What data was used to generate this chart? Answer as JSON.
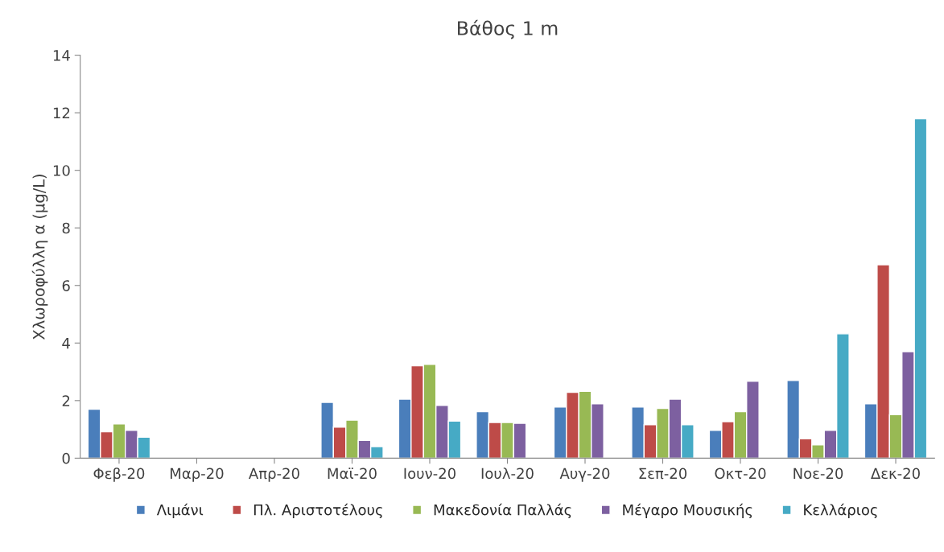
{
  "chart_data": {
    "type": "bar",
    "title": "Βάθος 1 m",
    "ylabel": "Χλωροφύλλη α (μg/L)",
    "categories": [
      "Φεβ-20",
      "Μαρ-20",
      "Απρ-20",
      "Μαϊ-20",
      "Ιουν-20",
      "Ιουλ-20",
      "Αυγ-20",
      "Σεπ-20",
      "Οκτ-20",
      "Νοε-20",
      "Δεκ-20"
    ],
    "series": [
      {
        "name": "Λιμάνι",
        "color": "#4a7ebb",
        "values": [
          1.7,
          null,
          null,
          1.94,
          2.05,
          1.62,
          1.78,
          1.78,
          0.97,
          2.7,
          1.89
        ]
      },
      {
        "name": "Πλ. Αριστοτέλους",
        "color": "#be4b48",
        "values": [
          0.92,
          null,
          null,
          1.08,
          3.21,
          1.24,
          2.29,
          1.16,
          1.27,
          0.67,
          6.72
        ]
      },
      {
        "name": "Μακεδονία Παλλάς",
        "color": "#98b954",
        "values": [
          1.19,
          null,
          null,
          1.32,
          3.26,
          1.24,
          2.32,
          1.73,
          1.62,
          0.46,
          1.51
        ]
      },
      {
        "name": "Μέγαρο Μουσικής",
        "color": "#7d60a0",
        "values": [
          0.97,
          null,
          null,
          0.62,
          1.83,
          1.21,
          1.89,
          2.05,
          2.67,
          0.97,
          3.7
        ]
      },
      {
        "name": "Κελλάριος",
        "color": "#46aac5",
        "values": [
          0.73,
          null,
          null,
          0.4,
          1.29,
          null,
          null,
          1.16,
          null,
          4.32,
          11.79
        ]
      }
    ],
    "ylim": [
      0,
      14
    ],
    "yticks": [
      0,
      2,
      4,
      6,
      8,
      10,
      12,
      14
    ],
    "grid": false,
    "legend": "bottom"
  }
}
